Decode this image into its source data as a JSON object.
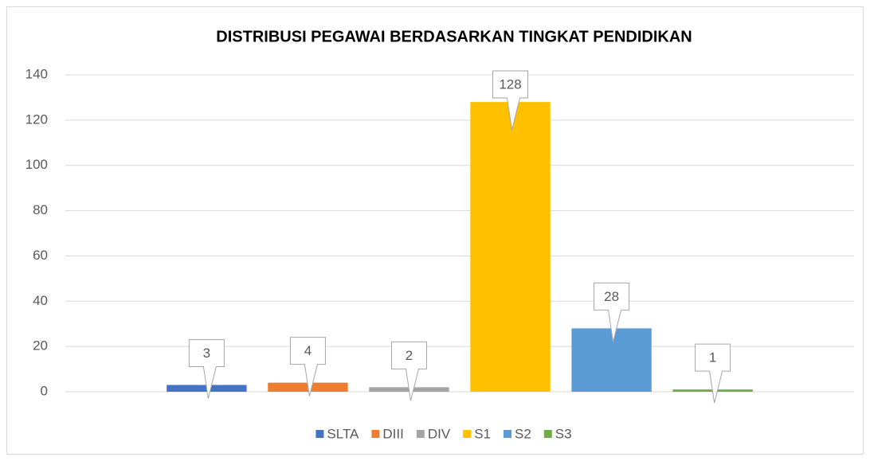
{
  "chart_data": {
    "type": "bar",
    "title": "DISTRIBUSI PEGAWAI BERDASARKAN TINGKAT PENDIDIKAN",
    "categories": [
      null
    ],
    "series": [
      {
        "name": "SLTA",
        "color": "#4472c4",
        "values": [
          3
        ]
      },
      {
        "name": "DIII",
        "color": "#ed7d31",
        "values": [
          4
        ]
      },
      {
        "name": "DIV",
        "color": "#a5a5a5",
        "values": [
          2
        ]
      },
      {
        "name": "S1",
        "color": "#ffc000",
        "values": [
          128
        ]
      },
      {
        "name": "S2",
        "color": "#5b9bd5",
        "values": [
          28
        ]
      },
      {
        "name": "S3",
        "color": "#70ad47",
        "values": [
          1
        ]
      }
    ],
    "ylim": [
      0,
      140
    ],
    "yticks": [
      0,
      20,
      40,
      60,
      80,
      100,
      120,
      140
    ],
    "grid": true,
    "legend": "bottom",
    "data_labels": true
  }
}
